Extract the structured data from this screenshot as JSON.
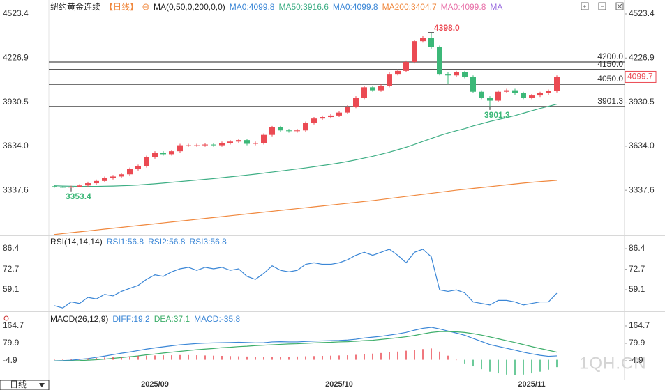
{
  "ui": {
    "tab": "日线",
    "watermark": "1QH.CN"
  },
  "chart_data": [
    {
      "type": "candlestick",
      "title": "纽约黄金连续",
      "period": "【日线】",
      "indicator": "MA(0,50,0,200,0,0)",
      "up_color": "#eb4a53",
      "down_color": "#3cb878",
      "categories": [
        null,
        null,
        null,
        null,
        null,
        null,
        null,
        null,
        null,
        null,
        null,
        null,
        "2025/09",
        null,
        null,
        null,
        null,
        null,
        null,
        null,
        null,
        null,
        null,
        null,
        null,
        null,
        null,
        null,
        null,
        null,
        null,
        null,
        null,
        null,
        "2025/10",
        null,
        null,
        null,
        null,
        null,
        null,
        null,
        null,
        null,
        null,
        null,
        null,
        null,
        null,
        null,
        null,
        null,
        null,
        null,
        null,
        null,
        null,
        "2025/11",
        null,
        null,
        null
      ],
      "open": [
        3365,
        3360,
        3356,
        3362,
        3370,
        3385,
        3400,
        3420,
        3430,
        3445,
        3480,
        3500,
        3560,
        3590,
        3580,
        3600,
        3640,
        3640,
        3640,
        3645,
        3640,
        3655,
        3665,
        3675,
        3650,
        3655,
        3710,
        3760,
        3740,
        3735,
        3740,
        3790,
        3820,
        3830,
        3840,
        3860,
        3900,
        3960,
        4030,
        4010,
        4040,
        4120,
        4140,
        4200,
        4340,
        4360,
        4300,
        4120,
        4110,
        4130,
        4100,
        4000,
        3960,
        3940,
        4000,
        4010,
        3990,
        3960,
        3975,
        3990,
        4005
      ],
      "high": [
        3372,
        3364,
        3368,
        3378,
        3395,
        3410,
        3430,
        3440,
        3455,
        3490,
        3510,
        3570,
        3600,
        3600,
        3610,
        3650,
        3650,
        3650,
        3655,
        3655,
        3665,
        3675,
        3685,
        3685,
        3665,
        3720,
        3770,
        3770,
        3750,
        3750,
        3800,
        3830,
        3840,
        3850,
        3870,
        3910,
        3970,
        4040,
        4040,
        4050,
        4130,
        4150,
        4210,
        4350,
        4375,
        4398,
        4310,
        4130,
        4140,
        4140,
        4110,
        4010,
        3970,
        4010,
        4020,
        4020,
        4000,
        3985,
        4000,
        4015,
        4110
      ],
      "low": [
        3355,
        3354,
        3353.4,
        3358,
        3360,
        3375,
        3390,
        3410,
        3420,
        3435,
        3470,
        3490,
        3550,
        3570,
        3570,
        3590,
        3630,
        3630,
        3630,
        3630,
        3630,
        3645,
        3655,
        3640,
        3640,
        3645,
        3700,
        3730,
        3725,
        3725,
        3730,
        3780,
        3810,
        3820,
        3830,
        3850,
        3890,
        3950,
        4000,
        4000,
        4030,
        4110,
        4130,
        4190,
        4330,
        4290,
        4110,
        4050,
        4100,
        4090,
        3990,
        3950,
        3901.3,
        3930,
        3990,
        3980,
        3950,
        3950,
        3965,
        3980,
        3995
      ],
      "close": [
        3360,
        3356,
        3362,
        3370,
        3385,
        3400,
        3420,
        3430,
        3445,
        3480,
        3500,
        3560,
        3590,
        3580,
        3600,
        3640,
        3640,
        3640,
        3645,
        3640,
        3655,
        3665,
        3675,
        3650,
        3655,
        3710,
        3760,
        3740,
        3735,
        3740,
        3790,
        3820,
        3830,
        3840,
        3860,
        3900,
        3960,
        4030,
        4010,
        4040,
        4120,
        4140,
        4200,
        4340,
        4360,
        4300,
        4120,
        4110,
        4130,
        4100,
        4000,
        3960,
        3940,
        4000,
        4010,
        3990,
        3960,
        3975,
        3990,
        4005,
        4099.7
      ],
      "series": [
        {
          "name": "MA0:4099.8",
          "color": "#3a86d6"
        },
        {
          "name": "MA50:3916.6",
          "color": "#3dae84",
          "values": [
            3368,
            3366,
            3365,
            3364,
            3364,
            3364,
            3365,
            3366,
            3368,
            3370,
            3373,
            3377,
            3381,
            3386,
            3391,
            3396,
            3401,
            3406,
            3411,
            3416,
            3422,
            3428,
            3434,
            3440,
            3446,
            3453,
            3460,
            3467,
            3474,
            3481,
            3488,
            3496,
            3504,
            3512,
            3521,
            3531,
            3542,
            3554,
            3566,
            3580,
            3594,
            3610,
            3627,
            3646,
            3666,
            3686,
            3705,
            3722,
            3738,
            3752,
            3770,
            3785,
            3800,
            3813,
            3826,
            3840,
            3856,
            3872,
            3888,
            3902,
            3916.6
          ]
        },
        {
          "name": "MA0:4099.8",
          "color": "#3a86d6"
        },
        {
          "name": "MA200:3404.7",
          "color": "#f0883e",
          "values": [
            3040,
            3046,
            3052,
            3058,
            3064,
            3070,
            3076,
            3082,
            3088,
            3094,
            3100,
            3106,
            3112,
            3118,
            3124,
            3130,
            3136,
            3142,
            3148,
            3154,
            3160,
            3166,
            3172,
            3178,
            3184,
            3190,
            3196,
            3202,
            3208,
            3214,
            3220,
            3226,
            3232,
            3238,
            3244,
            3250,
            3256,
            3262,
            3268,
            3275,
            3282,
            3289,
            3296,
            3303,
            3310,
            3317,
            3324,
            3331,
            3338,
            3344,
            3350,
            3356,
            3362,
            3368,
            3374,
            3380,
            3386,
            3391,
            3396,
            3400,
            3404.7
          ]
        },
        {
          "name": "MA0:4099.8",
          "color": "#e86fa8"
        },
        {
          "name": "MA",
          "color": "#9b6ee0"
        }
      ],
      "ylim": [
        3034,
        4617
      ],
      "yticks": [
        4523.4,
        4226.9,
        3930.5,
        {
          "value": 3634,
          "label": "3634.0"
        },
        3337.6
      ],
      "hlines": [
        {
          "value": 4200,
          "label": "4200.0"
        },
        {
          "value": 4150,
          "label": "4150.0"
        },
        {
          "value": 4050,
          "label": "4050.0"
        },
        {
          "value": 3901.3,
          "label": "3901.3"
        }
      ],
      "last": {
        "value": 4099.7,
        "label": "4099.7",
        "color": "#3a86d6"
      },
      "annotations": [
        {
          "value": 4398,
          "label": "4398.0",
          "color": "#eb4a53"
        },
        {
          "value": 3353.4,
          "label": "3353.4",
          "color": "#3cb878"
        },
        {
          "value": 3901.3,
          "label": "3901.3",
          "color": "#3cb878"
        }
      ]
    },
    {
      "type": "line",
      "title": "RSI(14,14,14)",
      "series": [
        {
          "name": "RSI1:56.8",
          "color": "#3a86d6",
          "values": [
            48.5,
            47,
            51,
            50,
            54,
            53,
            56,
            55,
            58,
            60,
            62,
            66,
            69,
            68,
            71,
            73,
            74,
            72,
            74,
            73,
            74,
            72,
            73,
            68,
            66,
            70,
            75,
            72,
            71,
            72,
            76,
            77,
            76,
            76,
            77,
            79,
            82,
            84,
            82,
            84,
            86,
            82,
            77,
            84,
            86,
            81,
            59,
            58,
            59,
            57,
            51,
            50,
            49,
            52,
            52,
            51,
            49,
            50,
            51,
            51,
            56.8
          ]
        },
        {
          "name": "RSI2:56.8",
          "color": "#3a86d6"
        },
        {
          "name": "RSI3:56.8",
          "color": "#3a86d6"
        }
      ],
      "ylim": [
        45.7,
        94.3
      ],
      "yticks": [
        86.4,
        72.7,
        59.1
      ]
    },
    {
      "type": "macd",
      "title": "MACD(26,12,9)",
      "up_color": "#eb4a53",
      "down_color": "#3cb878",
      "series": [
        {
          "name": "DIFF:19.2",
          "color": "#3a86d6",
          "values": [
            -5,
            -4,
            -2,
            2,
            6,
            12,
            18,
            25,
            32,
            38,
            45,
            52,
            58,
            63,
            68,
            73,
            76,
            79,
            81,
            82,
            83,
            84,
            85,
            84,
            82,
            83,
            87,
            88,
            87,
            87,
            89,
            91,
            92,
            93,
            94,
            96,
            100,
            106,
            110,
            114,
            120,
            126,
            133,
            144,
            153,
            158,
            150,
            140,
            130,
            119,
            104,
            89,
            74,
            65,
            56,
            47,
            37,
            29,
            22,
            17,
            19.2
          ]
        },
        {
          "name": "DEA:37.1",
          "color": "#3dae6a",
          "values": [
            -6,
            -6,
            -5,
            -4,
            -2,
            0,
            3,
            7,
            11,
            15,
            19,
            24,
            28,
            33,
            37,
            41,
            45,
            49,
            52,
            55,
            59,
            61,
            64,
            66,
            69,
            71,
            73,
            75,
            77,
            78,
            80,
            82,
            84,
            85,
            87,
            88,
            90,
            93,
            95,
            99,
            103,
            107,
            112,
            118,
            126,
            133,
            137,
            137,
            136,
            133,
            127,
            120,
            111,
            102,
            93,
            84,
            74,
            64,
            55,
            46,
            37.1
          ]
        },
        {
          "name": "MACD:-35.8",
          "color": "#3a86d6",
          "values": [
            1,
            2,
            3,
            5,
            7,
            9,
            11,
            13,
            15,
            17,
            19,
            20,
            21,
            22,
            22,
            23,
            23,
            22,
            21,
            20,
            19,
            18,
            17,
            16,
            15,
            14,
            15,
            15,
            15,
            16,
            17,
            18,
            19,
            20,
            21,
            22,
            24,
            27,
            30,
            33,
            36,
            40,
            44,
            48,
            52,
            55,
            40,
            20,
            0,
            -18,
            -32,
            -46,
            -58,
            -66,
            -72,
            -74,
            -72,
            -66,
            -58,
            -48,
            -35.8
          ]
        }
      ],
      "ylim": [
        -96.3,
        225.7
      ],
      "yticks": [
        164.7,
        79.9,
        -4.9
      ]
    }
  ]
}
